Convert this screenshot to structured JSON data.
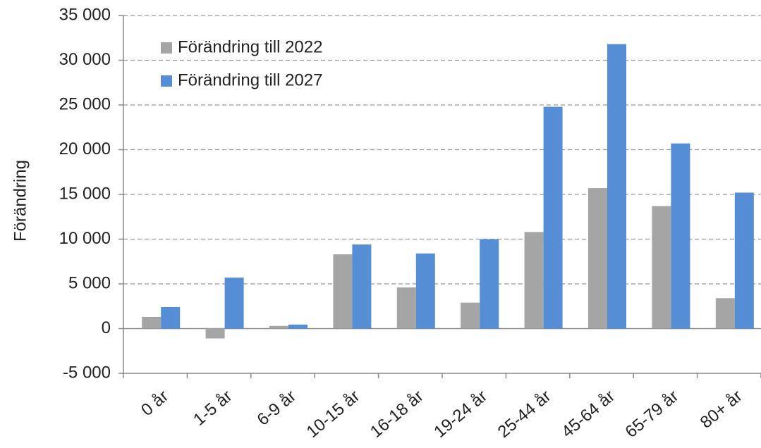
{
  "chart_data": {
    "type": "bar",
    "y_label": "Förändring",
    "categories": [
      "0 år",
      "1-5 år",
      "6-9 år",
      "10-15 år",
      "16-18 år",
      "19-24 år",
      "25-44 år",
      "45-64 år",
      "65-79 år",
      "80+ år"
    ],
    "series": [
      {
        "name": "Förändring till 2022",
        "color": "#a5a5a5",
        "values": [
          1300,
          -1100,
          300,
          8300,
          4600,
          2900,
          10800,
          15700,
          13700,
          3400
        ]
      },
      {
        "name": "Förändring till 2027",
        "color": "#558ed5",
        "values": [
          2400,
          5700,
          450,
          9400,
          8400,
          10000,
          24800,
          31800,
          20700,
          15200
        ]
      }
    ],
    "ylim": [
      -5000,
      35000
    ],
    "yticks": [
      {
        "value": -5000,
        "label": "-5 000"
      },
      0,
      {
        "value": 5000,
        "label": "5 000"
      },
      {
        "value": 10000,
        "label": "10 000"
      },
      {
        "value": 15000,
        "label": "15 000"
      },
      {
        "value": 20000,
        "label": "20 000"
      },
      {
        "value": 25000,
        "label": "25 000"
      },
      {
        "value": 30000,
        "label": "30 000"
      },
      {
        "value": 35000,
        "label": "35 000"
      }
    ],
    "grid": true,
    "legend": "upper left"
  }
}
